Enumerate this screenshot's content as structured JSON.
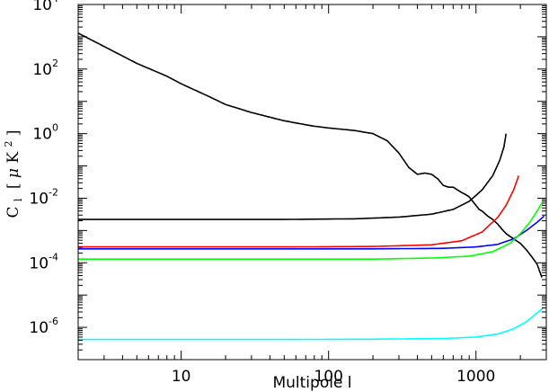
{
  "chart_data": {
    "type": "line",
    "xscale": "log",
    "yscale": "log",
    "xlim": [
      2,
      3000
    ],
    "ylim": [
      1e-07,
      10000
    ],
    "grid": false,
    "xlabel": "Multipole l",
    "ylabel": {
      "symbol": "C",
      "subscript": "l",
      "open": "[",
      "unit_greek": "μ",
      "unit": "K",
      "unit_power": "2",
      "close": "]"
    },
    "x_ticks": [
      {
        "value": 10,
        "label": "10"
      },
      {
        "value": 100,
        "label": "100"
      },
      {
        "value": 1000,
        "label": "1000"
      }
    ],
    "y_ticks": [
      {
        "value": 1e-06,
        "base": "10",
        "exp": "-6"
      },
      {
        "value": 0.0001,
        "base": "10",
        "exp": "-4"
      },
      {
        "value": 0.01,
        "base": "10",
        "exp": "-2"
      },
      {
        "value": 1,
        "base": "10",
        "exp": "0"
      },
      {
        "value": 100,
        "base": "10",
        "exp": "2"
      },
      {
        "value": 10000,
        "base": "10",
        "exp": "4"
      }
    ],
    "series": [
      {
        "color": "#000000",
        "x": [
          2,
          3,
          5,
          8,
          10,
          15,
          20,
          30,
          50,
          80,
          100,
          150,
          200,
          250,
          300,
          350,
          400,
          450,
          500,
          550,
          600,
          650,
          700,
          750,
          800,
          850,
          900,
          950,
          1000,
          1050,
          1100,
          1200,
          1300,
          1400,
          1500,
          1600,
          1800,
          2000,
          2200,
          2400,
          2600,
          2800
        ],
        "y": [
          1300,
          500,
          150,
          60,
          35,
          15,
          8,
          4.5,
          2.5,
          1.7,
          1.5,
          1.25,
          1.0,
          0.6,
          0.25,
          0.09,
          0.055,
          0.06,
          0.055,
          0.04,
          0.025,
          0.022,
          0.022,
          0.018,
          0.015,
          0.013,
          0.011,
          0.008,
          0.006,
          0.0045,
          0.004,
          0.0028,
          0.0022,
          0.0016,
          0.0011,
          0.0008,
          0.00055,
          0.0004,
          0.00025,
          0.00015,
          9e-05,
          3.5e-05
        ]
      },
      {
        "color": "#000000",
        "x": [
          2,
          50,
          150,
          300,
          500,
          700,
          900,
          1100,
          1300,
          1450,
          1550,
          1600
        ],
        "y": [
          0.0022,
          0.0022,
          0.0023,
          0.0026,
          0.0032,
          0.0045,
          0.008,
          0.018,
          0.05,
          0.15,
          0.4,
          1.0
        ]
      },
      {
        "color": "#ff0000",
        "x": [
          2,
          50,
          200,
          500,
          800,
          1100,
          1400,
          1600,
          1800,
          1950
        ],
        "y": [
          0.00031,
          0.00031,
          0.00032,
          0.00036,
          0.00048,
          0.0009,
          0.0025,
          0.006,
          0.018,
          0.05
        ]
      },
      {
        "color": "#0000ff",
        "x": [
          2,
          50,
          200,
          600,
          1000,
          1400,
          1800,
          2200,
          2600,
          2900
        ],
        "y": [
          0.00027,
          0.00027,
          0.00027,
          0.00028,
          0.00031,
          0.00037,
          0.00055,
          0.001,
          0.0018,
          0.0028
        ]
      },
      {
        "color": "#00ff00",
        "x": [
          2,
          50,
          200,
          500,
          900,
          1300,
          1700,
          2000,
          2300,
          2600,
          2800
        ],
        "y": [
          0.00013,
          0.00013,
          0.00013,
          0.00014,
          0.00016,
          0.00022,
          0.0004,
          0.0008,
          0.0017,
          0.004,
          0.007
        ]
      },
      {
        "color": "#00ffff",
        "x": [
          2,
          50,
          200,
          600,
          1000,
          1400,
          1800,
          2200,
          2600,
          2900
        ],
        "y": [
          4.2e-07,
          4.2e-07,
          4.3e-07,
          4.5e-07,
          5e-07,
          6.2e-07,
          9e-07,
          1.5e-06,
          2.8e-06,
          4.2e-06
        ]
      }
    ]
  }
}
